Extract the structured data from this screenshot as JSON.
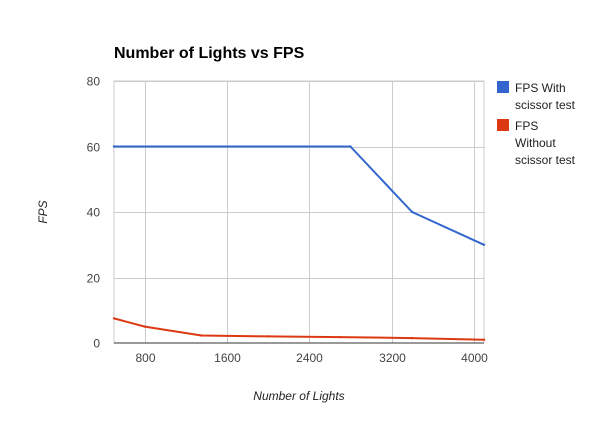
{
  "chart_data": {
    "type": "line",
    "title": "Number of Lights vs FPS",
    "xlabel": "Number of Lights",
    "ylabel": "FPS",
    "xlim": [
      500,
      4100
    ],
    "ylim": [
      0,
      80
    ],
    "xticks": [
      800,
      1600,
      2400,
      3200,
      4000
    ],
    "yticks": [
      0,
      20,
      40,
      60,
      80
    ],
    "grid": true,
    "legend_position": "right",
    "series": [
      {
        "name": "FPS With scissor test",
        "legend_lines": [
          "FPS With",
          "scissor test"
        ],
        "color": "#3366cc",
        "points": [
          [
            500,
            60
          ],
          [
            2800,
            60
          ],
          [
            3400,
            40
          ],
          [
            4100,
            30
          ]
        ]
      },
      {
        "name": "FPS Without scissor test",
        "legend_lines": [
          "FPS",
          "Without",
          "scissor test"
        ],
        "color": "#dc3912",
        "points": [
          [
            500,
            7.5
          ],
          [
            800,
            5
          ],
          [
            1350,
            2.3
          ],
          [
            2000,
            2.0
          ],
          [
            2700,
            1.8
          ],
          [
            3400,
            1.5
          ],
          [
            4100,
            1.0
          ]
        ]
      }
    ]
  }
}
